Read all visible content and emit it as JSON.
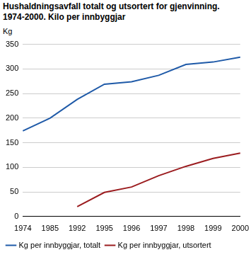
{
  "chart_data": {
    "type": "line",
    "title": [
      "Hushaldningsavfall totalt og utsortert for gjenvinning.",
      "1974-2000. Kilo per innbyggjar"
    ],
    "y_label": "Kg",
    "categories": [
      "1974",
      "1985",
      "1992",
      "1995",
      "1996",
      "1997",
      "1998",
      "1999",
      "2000"
    ],
    "series": [
      {
        "name": "Kg per innbyggjar, totalt",
        "color": "#1f5aa8",
        "values": [
          174,
          200,
          238,
          269,
          274,
          287,
          309,
          314,
          324
        ]
      },
      {
        "name": "Kg per innbyggjar, utsortert",
        "color": "#9b1c1f",
        "values": [
          null,
          null,
          20,
          49,
          60,
          83,
          102,
          118,
          129
        ]
      }
    ],
    "ylim": [
      0,
      350
    ],
    "yticks": [
      0,
      50,
      100,
      150,
      200,
      250,
      300,
      350
    ],
    "grid": true,
    "legend": "bottom"
  }
}
